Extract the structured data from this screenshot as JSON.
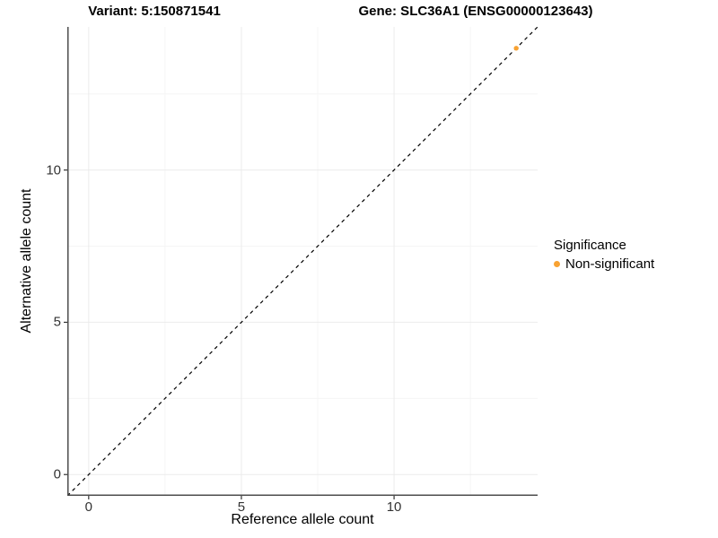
{
  "titles": {
    "variant": "Variant: 5:150871541",
    "gene": "Gene: SLC36A1 (ENSG00000123643)"
  },
  "axes": {
    "x": {
      "label": "Reference allele count",
      "ticks": [
        0,
        5,
        10
      ],
      "range": [
        -0.7,
        14.7
      ]
    },
    "y": {
      "label": "Alternative allele count",
      "ticks": [
        0,
        5,
        10
      ],
      "range": [
        -0.7,
        14.7
      ]
    }
  },
  "legend": {
    "title": "Significance",
    "items": [
      {
        "label": "Non-significant",
        "color": "#F8A232"
      }
    ]
  },
  "colors": {
    "point": "#F8A232",
    "axis_line": "#4D4D4D",
    "tick_mark": "#333333",
    "grid_major": "#EBEBEB",
    "grid_minor": "#F5F5F5",
    "identity_line": "#000000"
  },
  "chart_data": {
    "type": "scatter",
    "title": "Variant: 5:150871541 | Gene: SLC36A1 (ENSG00000123643)",
    "xlabel": "Reference allele count",
    "ylabel": "Alternative allele count",
    "xlim": [
      -0.7,
      14.7
    ],
    "ylim": [
      -0.7,
      14.7
    ],
    "x_ticks": [
      0,
      5,
      10
    ],
    "y_ticks": [
      0,
      5,
      10
    ],
    "grid": "major+minor",
    "legend_position": "right",
    "series": [
      {
        "name": "Non-significant",
        "color": "#F8A232",
        "points": [
          {
            "x": 14,
            "y": 14
          }
        ]
      }
    ],
    "reference_lines": [
      {
        "kind": "identity",
        "style": "dashed",
        "from": [
          -0.7,
          -0.7
        ],
        "to": [
          14.7,
          14.7
        ]
      }
    ]
  }
}
